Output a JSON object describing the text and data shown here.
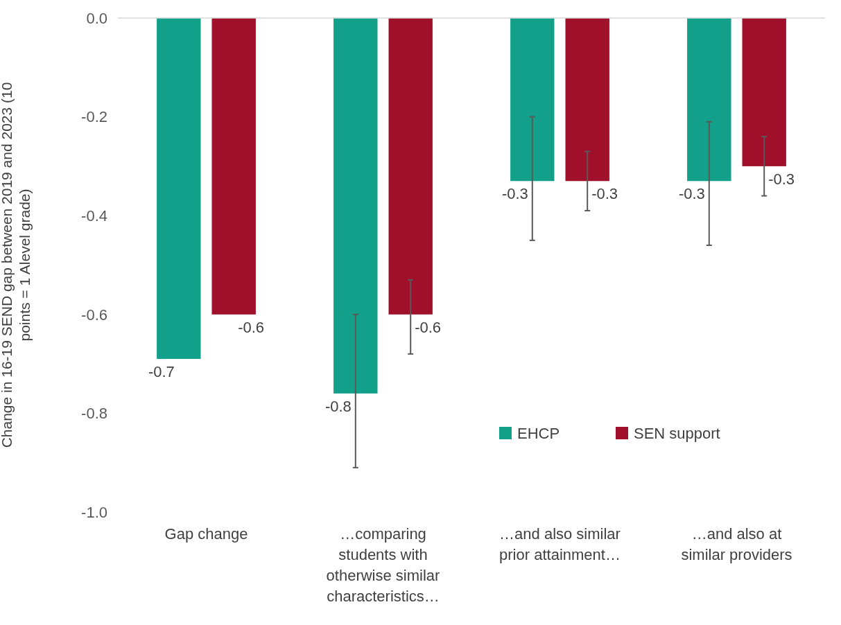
{
  "chart_data": {
    "type": "bar",
    "ylabel": "Change in 16-19 SEND gap between 2019 and 2023 (10 points = 1 Alevel grade)",
    "categories": [
      "Gap change",
      "…comparing students with otherwise similar characteristics…",
      "…and also similar prior attainment…",
      "…and also at similar providers"
    ],
    "series": [
      {
        "name": "EHCP",
        "color": "#12a08a",
        "values": [
          -0.69,
          -0.76,
          -0.33,
          -0.33
        ],
        "errors": [
          null,
          [
            -0.91,
            -0.6
          ],
          [
            -0.45,
            -0.2
          ],
          [
            -0.46,
            -0.21
          ]
        ],
        "value_labels": [
          "-0.7",
          "-0.8",
          "-0.3",
          "-0.3"
        ]
      },
      {
        "name": "SEN support",
        "color": "#a0102a",
        "values": [
          -0.6,
          -0.6,
          -0.33,
          -0.3
        ],
        "errors": [
          null,
          [
            -0.68,
            -0.53
          ],
          [
            -0.39,
            -0.27
          ],
          [
            -0.36,
            -0.24
          ]
        ],
        "value_labels": [
          "-0.6",
          "-0.6",
          "-0.3",
          "-0.3"
        ]
      }
    ],
    "ylim": [
      -1,
      0
    ],
    "yticks": [
      {
        "value": 0,
        "label": "0.0"
      },
      -0.2,
      -0.4,
      -0.6,
      -0.8,
      {
        "value": -1,
        "label": "-1.0"
      }
    ],
    "grid": false,
    "legend": "bottom right"
  }
}
